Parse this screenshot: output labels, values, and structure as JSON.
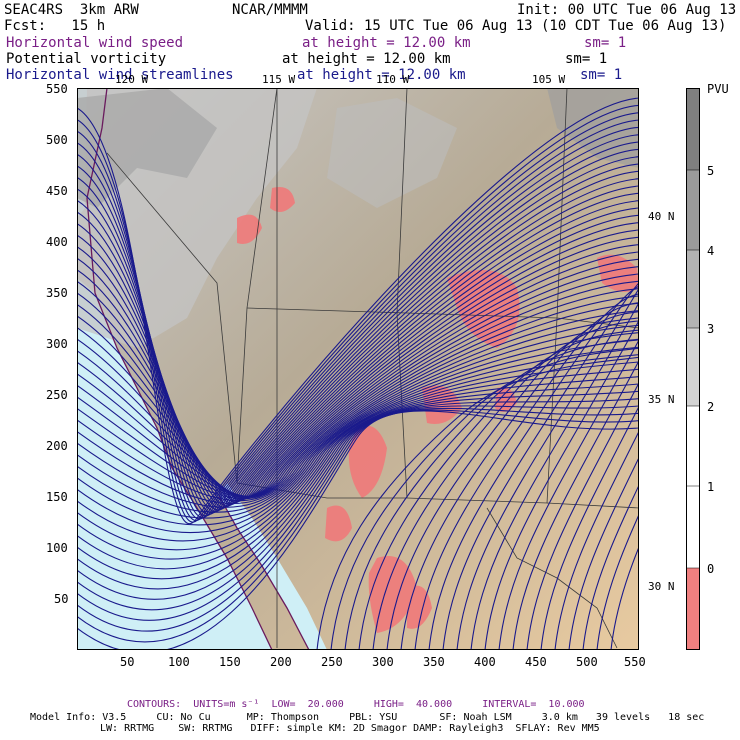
{
  "header": {
    "project": "SEAC4RS  3km ARW",
    "center": "NCAR/MMMM",
    "init": "Init: 00 UTC Tue 06 Aug 13",
    "fcst": "Fcst:   15 h",
    "valid": "Valid: 15 UTC Tue 06 Aug 13 (10 CDT Tue 06 Aug 13)"
  },
  "fields": [
    {
      "name": "Horizontal wind speed",
      "height": "at height = 12.00 km",
      "sm": "sm= 1",
      "color": "#7a1f86"
    },
    {
      "name": "Potential vorticity",
      "height": "at height = 12.00 km",
      "sm": "sm= 1",
      "color": "#000000"
    },
    {
      "name": "Horizontal wind streamlines",
      "height": "at height = 12.00 km",
      "sm": "sm= 1",
      "color": "#1a1a8c"
    }
  ],
  "map": {
    "x_ticks": [
      "50",
      "100",
      "150",
      "200",
      "250",
      "300",
      "350",
      "400",
      "450",
      "500",
      "550"
    ],
    "y_ticks": [
      "50",
      "100",
      "150",
      "200",
      "250",
      "300",
      "350",
      "400",
      "450",
      "500",
      "550"
    ],
    "lon_labels": [
      "120 W",
      "115 W",
      "110 W",
      "105 W"
    ],
    "lat_labels": [
      "40 N",
      "35 N",
      "30 N"
    ],
    "streamline_color": "#1a1a8c",
    "wind_contour_fill": "#f07a7a"
  },
  "colorbar": {
    "unit": "PVU",
    "labels": [
      "5",
      "4",
      "3",
      "2",
      "1",
      "0"
    ],
    "colors": [
      "#7f7f7f",
      "#a6a6a6",
      "#d3d3d3",
      "#ffffff",
      "#ffffff",
      "#f08080"
    ]
  },
  "footer": {
    "contours": "CONTOURS:  UNITS=m s⁻¹  LOW=  20.000     HIGH=  40.000     INTERVAL=  10.000",
    "model1": "Model Info: V3.5     CU: No Cu      MP: Thompson     PBL: YSU       SF: Noah LSM     3.0 km   39 levels   18 sec",
    "model2": "LW: RRTMG    SW: RRTMG   DIFF: simple KM: 2D Smagor DAMP: Rayleigh3  SFLAY: Rev MM5"
  }
}
